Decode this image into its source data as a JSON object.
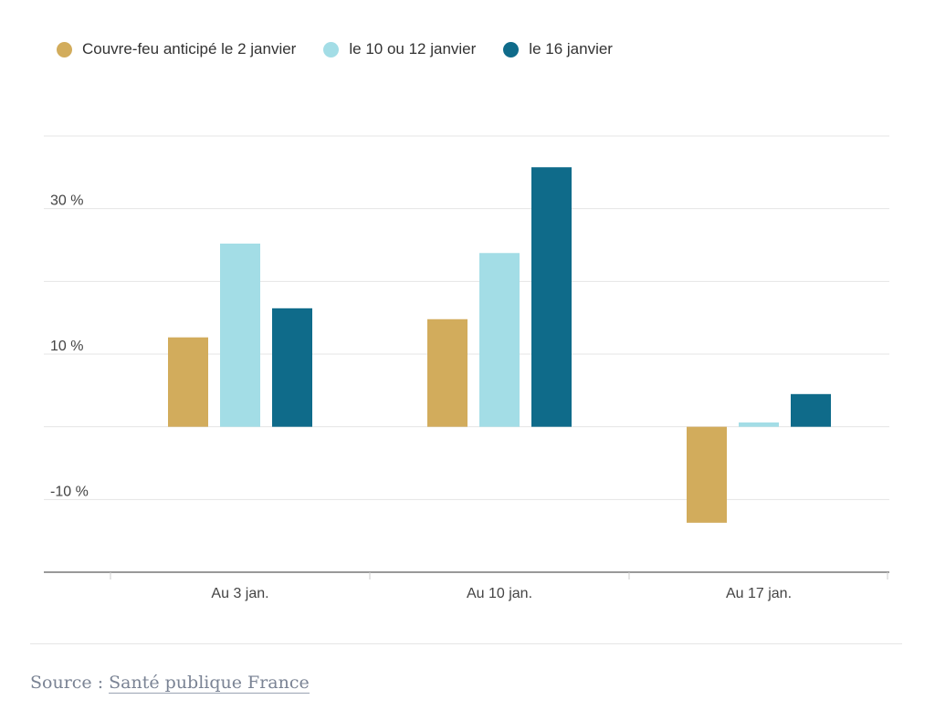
{
  "chart_data": {
    "type": "bar",
    "categories": [
      "Au 3 jan.",
      "Au 10 jan.",
      "Au 17 jan."
    ],
    "series": [
      {
        "name": "Couvre-feu anticipé le 2 janvier",
        "color": "#d2ac5c",
        "values": [
          12.3,
          14.8,
          -13.2
        ]
      },
      {
        "name": "le 10 ou 12 janvier",
        "color": "#a3dde6",
        "values": [
          25.2,
          23.9,
          0.6
        ]
      },
      {
        "name": "le 16 janvier",
        "color": "#0f6b8a",
        "values": [
          16.3,
          35.7,
          4.5
        ]
      }
    ],
    "ylim": [
      -20,
      40
    ],
    "gridlines": [
      -20,
      -10,
      0,
      10,
      20,
      30,
      40
    ],
    "ytick_labels": [
      {
        "value": 30,
        "label": "30  %"
      },
      {
        "value": 10,
        "label": "10  %"
      },
      {
        "value": -10,
        "label": "-10  %"
      }
    ],
    "legend": "top-left",
    "xlabel": "",
    "ylabel": "",
    "title": ""
  },
  "source": {
    "prefix": "Source : ",
    "link": "Santé publique France"
  }
}
